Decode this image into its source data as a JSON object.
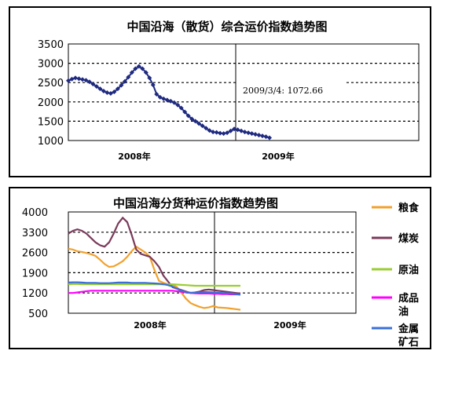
{
  "chart_data": [
    {
      "type": "line",
      "title": "中国沿海（散货）综合运价指数趋势图",
      "ylim": [
        1000,
        3500
      ],
      "yticks": [
        "3500",
        "3000",
        "2500",
        "2000",
        "1500",
        "1000"
      ],
      "xticks": [
        "2008年",
        "2009年"
      ],
      "grid": true,
      "marker": "diamond",
      "color": "#1f2a80",
      "annotation": "2009/3/4: 1072.66",
      "series": [
        {
          "values": [
            2550,
            2590,
            2620,
            2600,
            2580,
            2560,
            2520,
            2460,
            2400,
            2340,
            2280,
            2240,
            2220,
            2260,
            2340,
            2430,
            2530,
            2640,
            2760,
            2860,
            2920,
            2860,
            2760,
            2620,
            2440,
            2200,
            2120,
            2080,
            2050,
            2020,
            1980,
            1920,
            1840,
            1740,
            1640,
            1560,
            1500,
            1440,
            1380,
            1320,
            1260,
            1220,
            1210,
            1190,
            1180,
            1200,
            1250,
            1300,
            1280,
            1250,
            1220,
            1200,
            1180,
            1160,
            1140,
            1120,
            1100,
            1072
          ]
        }
      ]
    },
    {
      "type": "line",
      "title": "中国沿海分货种运价指数趋势图",
      "ylim": [
        500,
        4000
      ],
      "yticks": [
        "4000",
        "3300",
        "2600",
        "1900",
        "1200",
        "500"
      ],
      "xticks": [
        "2008年",
        "2009年"
      ],
      "grid": true,
      "series": [
        {
          "name": "粮食",
          "color": "#f2a12c",
          "values": [
            2730,
            2700,
            2640,
            2620,
            2580,
            2540,
            2480,
            2350,
            2200,
            2100,
            2120,
            2200,
            2300,
            2450,
            2650,
            2800,
            2700,
            2600,
            2450,
            2000,
            1620,
            1550,
            1500,
            1480,
            1400,
            1200,
            1000,
            850,
            780,
            720,
            680,
            700,
            750,
            700,
            690,
            680,
            660,
            640,
            620
          ]
        },
        {
          "name": "煤炭",
          "color": "#7a3a5a",
          "values": [
            3250,
            3350,
            3400,
            3350,
            3250,
            3100,
            2950,
            2850,
            2800,
            2950,
            3250,
            3600,
            3800,
            3650,
            3200,
            2700,
            2550,
            2500,
            2450,
            2300,
            2100,
            1800,
            1600,
            1400,
            1350,
            1300,
            1250,
            1200,
            1220,
            1250,
            1300,
            1320,
            1300,
            1280,
            1260,
            1240,
            1220,
            1200,
            1180
          ]
        },
        {
          "name": "原油",
          "color": "#9acd32",
          "values": [
            1500,
            1510,
            1510,
            1505,
            1505,
            1500,
            1500,
            1500,
            1500,
            1500,
            1500,
            1500,
            1500,
            1500,
            1500,
            1500,
            1500,
            1500,
            1500,
            1500,
            1500,
            1500,
            1500,
            1500,
            1490,
            1480,
            1470,
            1460,
            1450,
            1450,
            1450,
            1450,
            1450,
            1450,
            1450,
            1450,
            1450,
            1450,
            1450
          ]
        },
        {
          "name": "成品油",
          "color": "#ff00ff",
          "values": [
            1200,
            1200,
            1220,
            1240,
            1260,
            1280,
            1280,
            1280,
            1280,
            1280,
            1280,
            1280,
            1280,
            1280,
            1280,
            1280,
            1280,
            1280,
            1280,
            1280,
            1280,
            1280,
            1280,
            1280,
            1260,
            1240,
            1220,
            1200,
            1190,
            1180,
            1180,
            1180,
            1170,
            1170,
            1160,
            1160,
            1150,
            1150,
            1150
          ]
        },
        {
          "name": "金属矿石",
          "color": "#3a6fd8",
          "values": [
            1560,
            1570,
            1570,
            1560,
            1550,
            1550,
            1550,
            1540,
            1540,
            1540,
            1550,
            1560,
            1560,
            1560,
            1550,
            1550,
            1550,
            1550,
            1540,
            1530,
            1520,
            1500,
            1470,
            1420,
            1350,
            1280,
            1230,
            1210,
            1210,
            1220,
            1230,
            1230,
            1220,
            1210,
            1200,
            1190,
            1180,
            1160,
            1140
          ]
        }
      ],
      "legend_position": "right"
    }
  ]
}
